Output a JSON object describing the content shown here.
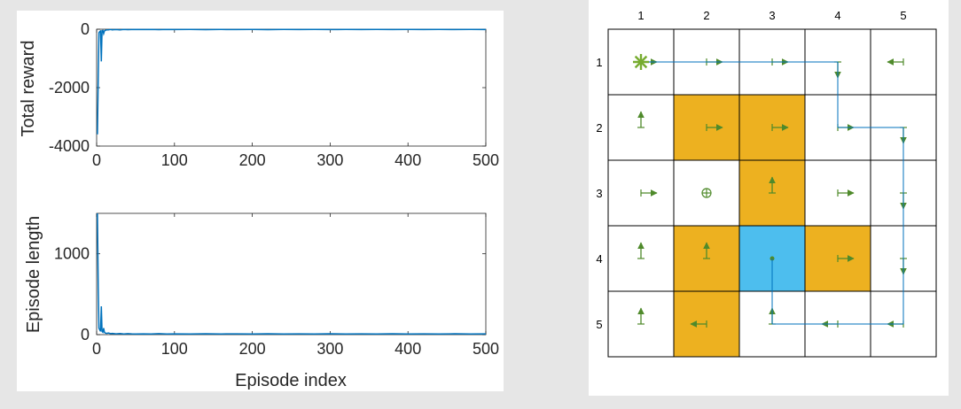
{
  "colors": {
    "background": "#e6e6e6",
    "panel": "#ffffff",
    "line": "#0072bd",
    "obstacle": "#edb120",
    "goal": "#4dbeee",
    "arrow": "#4f8a2b",
    "start": "#77ac30",
    "path": "#0072bd",
    "grid": "#000000"
  },
  "chart_data": [
    {
      "type": "line",
      "title": "",
      "xlabel": "",
      "ylabel": "Total reward",
      "xlim": [
        0,
        500
      ],
      "ylim": [
        -4000,
        0
      ],
      "xticks": [
        0,
        100,
        200,
        300,
        400,
        500
      ],
      "yticks": [
        -4000,
        -2000,
        0
      ],
      "x_tick_labels": [
        "0",
        "100",
        "200",
        "300",
        "400",
        "500"
      ],
      "y_tick_labels": [
        "-4000",
        "-2000",
        "0"
      ],
      "grid": false,
      "series": [
        {
          "x": [
            1,
            2,
            3,
            4,
            5,
            6,
            7,
            8,
            9,
            10,
            11,
            12,
            13,
            15,
            18,
            20,
            25,
            30,
            35,
            40,
            45,
            50,
            60,
            70,
            80,
            90,
            100,
            120,
            140,
            160,
            180,
            200,
            220,
            240,
            260,
            280,
            300,
            320,
            340,
            360,
            380,
            400,
            420,
            440,
            460,
            480,
            500
          ],
          "values": [
            -3600,
            -1700,
            -120,
            -80,
            -60,
            -1100,
            -50,
            -40,
            -150,
            -60,
            -40,
            -30,
            -20,
            -25,
            -10,
            -20,
            -12,
            -20,
            -8,
            -15,
            -12,
            -10,
            -12,
            -8,
            -15,
            -10,
            -12,
            -9,
            -15,
            -10,
            -12,
            -9,
            -14,
            -10,
            -12,
            -9,
            -13,
            -10,
            -12,
            -9,
            -13,
            -10,
            -12,
            -9,
            -13,
            -10,
            -12
          ]
        }
      ]
    },
    {
      "type": "line",
      "title": "",
      "xlabel": "Episode index",
      "ylabel": "Episode length",
      "xlim": [
        0,
        500
      ],
      "ylim": [
        0,
        1500
      ],
      "xticks": [
        0,
        100,
        200,
        300,
        400,
        500
      ],
      "yticks": [
        0,
        1000
      ],
      "x_tick_labels": [
        "0",
        "100",
        "200",
        "300",
        "400",
        "500"
      ],
      "y_tick_labels": [
        "0",
        "1000"
      ],
      "grid": false,
      "series": [
        {
          "x": [
            1,
            2,
            3,
            4,
            5,
            6,
            7,
            8,
            9,
            10,
            11,
            12,
            13,
            15,
            18,
            20,
            25,
            30,
            35,
            40,
            45,
            50,
            60,
            70,
            80,
            90,
            100,
            120,
            140,
            160,
            180,
            200,
            220,
            240,
            260,
            280,
            300,
            320,
            340,
            360,
            380,
            400,
            420,
            440,
            460,
            480,
            500
          ],
          "values": [
            1500,
            600,
            80,
            60,
            40,
            350,
            40,
            30,
            80,
            30,
            20,
            18,
            15,
            20,
            12,
            15,
            10,
            14,
            9,
            12,
            10,
            9,
            10,
            8,
            12,
            9,
            10,
            8,
            11,
            9,
            10,
            8,
            11,
            9,
            10,
            8,
            11,
            9,
            10,
            8,
            11,
            9,
            10,
            8,
            11,
            9,
            10
          ]
        }
      ]
    }
  ],
  "grid_world": {
    "col_labels": [
      "1",
      "2",
      "3",
      "4",
      "5"
    ],
    "row_labels": [
      "1",
      "2",
      "3",
      "4",
      "5"
    ],
    "rows": 5,
    "cols": 5,
    "start": [
      1,
      1
    ],
    "goal": [
      4,
      3
    ],
    "obstacles": [
      [
        2,
        2
      ],
      [
        2,
        3
      ],
      [
        3,
        3
      ],
      [
        4,
        2
      ],
      [
        4,
        4
      ],
      [
        5,
        2
      ]
    ],
    "bullseye": [
      3,
      2
    ],
    "policy": {
      "1,1": "right",
      "1,2": "right",
      "1,3": "right",
      "1,4": "down",
      "1,5": "left",
      "2,1": "up",
      "2,2": "right",
      "2,3": "right",
      "2,4": "right",
      "2,5": "down",
      "3,1": "right",
      "3,2": "stay",
      "3,3": "up",
      "3,4": "right",
      "3,5": "down",
      "4,1": "up",
      "4,2": "up",
      "4,3": "stay",
      "4,4": "right",
      "4,5": "down",
      "5,1": "up",
      "5,2": "left",
      "5,3": "up",
      "5,4": "left",
      "5,5": "left"
    },
    "path": [
      [
        1,
        1
      ],
      [
        1,
        2
      ],
      [
        1,
        3
      ],
      [
        1,
        4
      ],
      [
        2,
        4
      ],
      [
        2,
        5
      ],
      [
        3,
        5
      ],
      [
        4,
        5
      ],
      [
        5,
        5
      ],
      [
        5,
        4
      ],
      [
        5,
        3
      ],
      [
        4,
        3
      ]
    ]
  }
}
